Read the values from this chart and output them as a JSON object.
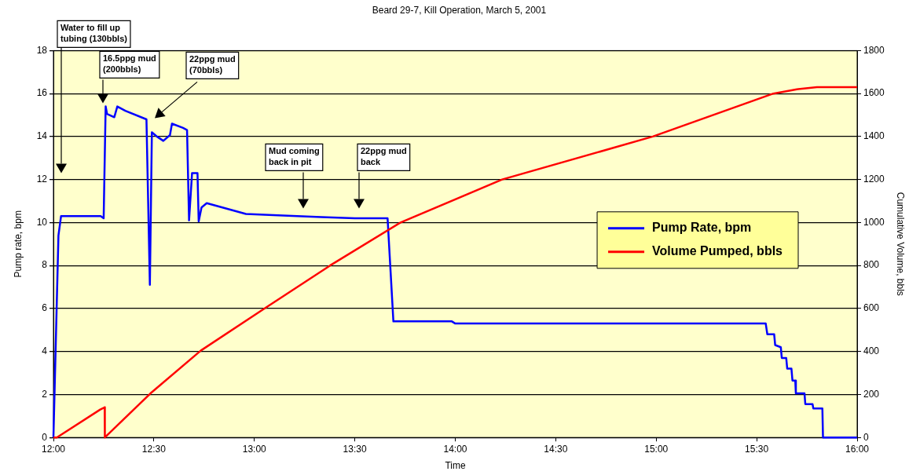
{
  "chart_data": {
    "type": "line",
    "title": "Beard 29-7, Kill Operation, March 5, 2001",
    "xlabel": "Time",
    "ylabel": "Pump rate, bpm",
    "y2label": "Cumulative Volume, bbls",
    "xlim": [
      12,
      16
    ],
    "xticks": [
      {
        "value": 12,
        "label": "12:00"
      },
      {
        "value": 12.5,
        "label": "12:30"
      },
      {
        "value": 13,
        "label": "13:00"
      },
      {
        "value": 13.5,
        "label": "13:30"
      },
      {
        "value": 14,
        "label": "14:00"
      },
      {
        "value": 14.5,
        "label": "14:30"
      },
      {
        "value": 15,
        "label": "15:00"
      },
      {
        "value": 15.5,
        "label": "15:30"
      },
      {
        "value": 16,
        "label": "16:00"
      }
    ],
    "ylim": [
      0,
      18
    ],
    "yticks": [
      0,
      2,
      4,
      6,
      8,
      10,
      12,
      14,
      16,
      18
    ],
    "y2lim": [
      0,
      1800
    ],
    "y2ticks": [
      0,
      200,
      400,
      600,
      800,
      1000,
      1200,
      1400,
      1600,
      1800
    ],
    "grid": "y",
    "legend": "right",
    "series": [
      {
        "name": "Pump Rate, bpm",
        "color": "#0000ff",
        "x": [
          12,
          12.025,
          12.038,
          12.235,
          12.25,
          12.26,
          12.267,
          12.303,
          12.318,
          12.358,
          12.463,
          12.48,
          12.49,
          12.515,
          12.547,
          12.58,
          12.59,
          12.645,
          12.665,
          12.675,
          12.69,
          12.717,
          12.723,
          12.737,
          12.763,
          12.802,
          12.88,
          12.958,
          13.142,
          13.333,
          13.5,
          13.663,
          13.692,
          13.983,
          14,
          15.545,
          15.553,
          15.587,
          15.592,
          15.62,
          15.625,
          15.647,
          15.652,
          15.673,
          15.678,
          15.692,
          15.695,
          15.738,
          15.742,
          15.778,
          15.782,
          15.827,
          15.83,
          16
        ],
        "values": [
          0,
          9.4,
          10.3,
          10.3,
          10.2,
          15.4,
          15.05,
          14.9,
          15.4,
          15.2,
          14.8,
          7.1,
          14.2,
          14,
          13.8,
          14.07,
          14.6,
          14.4,
          14.3,
          10.1,
          12.3,
          12.3,
          10.05,
          10.7,
          10.9,
          10.8,
          10.6,
          10.4,
          10.33,
          10.25,
          10.2,
          10.2,
          5.4,
          5.4,
          5.3,
          5.3,
          4.8,
          4.8,
          4.3,
          4.2,
          3.7,
          3.7,
          3.2,
          3.2,
          2.65,
          2.65,
          2.05,
          2.05,
          1.55,
          1.55,
          1.35,
          1.35,
          0,
          0
        ]
      },
      {
        "name": "Volume Pumped, bbls",
        "color": "#ff0000",
        "axis": "y2",
        "x": [
          12,
          12.017,
          12.233,
          12.255,
          12.256,
          12.483,
          12.733,
          13.05,
          13.377,
          13.728,
          14.233,
          14.983,
          15.583,
          15.7,
          15.8,
          16
        ],
        "values": [
          0,
          0,
          130,
          140,
          0,
          205,
          404,
          600,
          800,
          1000,
          1200,
          1400,
          1600,
          1620,
          1630,
          1630
        ]
      }
    ],
    "annotations": [
      "Water to fill up\ntubing (130bbls)",
      "16.5ppg mud\n(200bbls)",
      "22ppg mud\n(70bbls)",
      "Mud coming\nback in pit",
      "22ppg mud\nback"
    ]
  }
}
